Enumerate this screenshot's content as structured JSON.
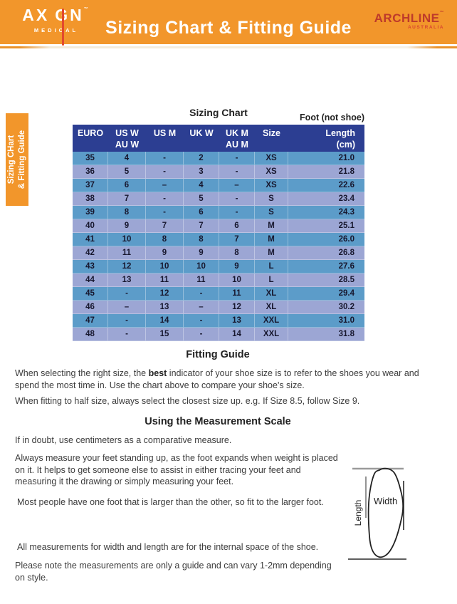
{
  "colors": {
    "orange": "#F2962B",
    "navy": "#2C3E92",
    "row_blue": "#5C9CC9",
    "row_light": "#9CA6D4",
    "red": "#E2492E",
    "archline_red": "#BE3A2B",
    "ink": "#3C3C3C"
  },
  "header": {
    "axign_logo": {
      "part1": "AX",
      "part2": "GN",
      "tm": "™",
      "sub": "MEDICAL"
    },
    "title": "Sizing Chart & Fitting Guide",
    "archline_logo": {
      "name": "ARCHLINE",
      "tm": "™",
      "sub": "AUSTRALIA"
    }
  },
  "side_tab": {
    "line1": "Sizing CHart",
    "line2": "& Fitting Guide"
  },
  "sizing_chart": {
    "title": "Sizing Chart",
    "foot_note": "Foot (not shoe)",
    "columns": [
      {
        "l1": "EURO",
        "l2": ""
      },
      {
        "l1": "US W",
        "l2": "AU W"
      },
      {
        "l1": "US M",
        "l2": ""
      },
      {
        "l1": "UK W",
        "l2": ""
      },
      {
        "l1": "UK M",
        "l2": "AU M"
      },
      {
        "l1": "Size",
        "l2": ""
      },
      {
        "l1": "Length",
        "l2": "(cm)"
      }
    ],
    "rows": [
      [
        "35",
        "4",
        "-",
        "2",
        "-",
        "XS",
        "21.0"
      ],
      [
        "36",
        "5",
        "-",
        "3",
        "-",
        "XS",
        "21.8"
      ],
      [
        "37",
        "6",
        "–",
        "4",
        "–",
        "XS",
        "22.6"
      ],
      [
        "38",
        "7",
        "-",
        "5",
        "-",
        "S",
        "23.4"
      ],
      [
        "39",
        "8",
        "-",
        "6",
        "-",
        "S",
        "24.3"
      ],
      [
        "40",
        "9",
        "7",
        "7",
        "6",
        "M",
        "25.1"
      ],
      [
        "41",
        "10",
        "8",
        "8",
        "7",
        "M",
        "26.0"
      ],
      [
        "42",
        "11",
        "9",
        "9",
        "8",
        "M",
        "26.8"
      ],
      [
        "43",
        "12",
        "10",
        "10",
        "9",
        "L",
        "27.6"
      ],
      [
        "44",
        "13",
        "11",
        "11",
        "10",
        "L",
        "28.5"
      ],
      [
        "45",
        "-",
        "12",
        "-",
        "11",
        "XL",
        "29.4"
      ],
      [
        "46",
        "–",
        "13",
        "–",
        "12",
        "XL",
        "30.2"
      ],
      [
        "47",
        "-",
        "14",
        "-",
        "13",
        "XXL",
        "31.0"
      ],
      [
        "48",
        "-",
        "15",
        "-",
        "14",
        "XXL",
        "31.8"
      ]
    ]
  },
  "fitting_guide": {
    "title": "Fitting Guide",
    "p1_before": "When selecting the right size, the ",
    "p1_bold": "best",
    "p1_after": " indicator of your shoe size is to refer to the shoes you wear and spend the most time in. Use the chart above to compare your shoe's size.",
    "p2": "When fitting to half size, always select the closest size up. e.g. If Size 8.5, follow Size 9."
  },
  "measurement_scale": {
    "title": "Using the Measurement Scale",
    "p1": "If in doubt, use centimeters as a comparative measure.",
    "p2": "Always measure your feet standing up, as the foot expands when weight is placed on it. It helps to get someone else to assist in either tracing your feet and measuring it the drawing or simply measuring your feet.",
    "p3": "Most people have one foot that is larger than the other, so fit to the larger foot.",
    "p4": "All measurements for width and length are for the internal space of the shoe.",
    "p5": "Please note the measurements are only a guide and can vary 1-2mm depending on style.",
    "diagram": {
      "width_label": "Width",
      "length_label": "Length"
    }
  }
}
